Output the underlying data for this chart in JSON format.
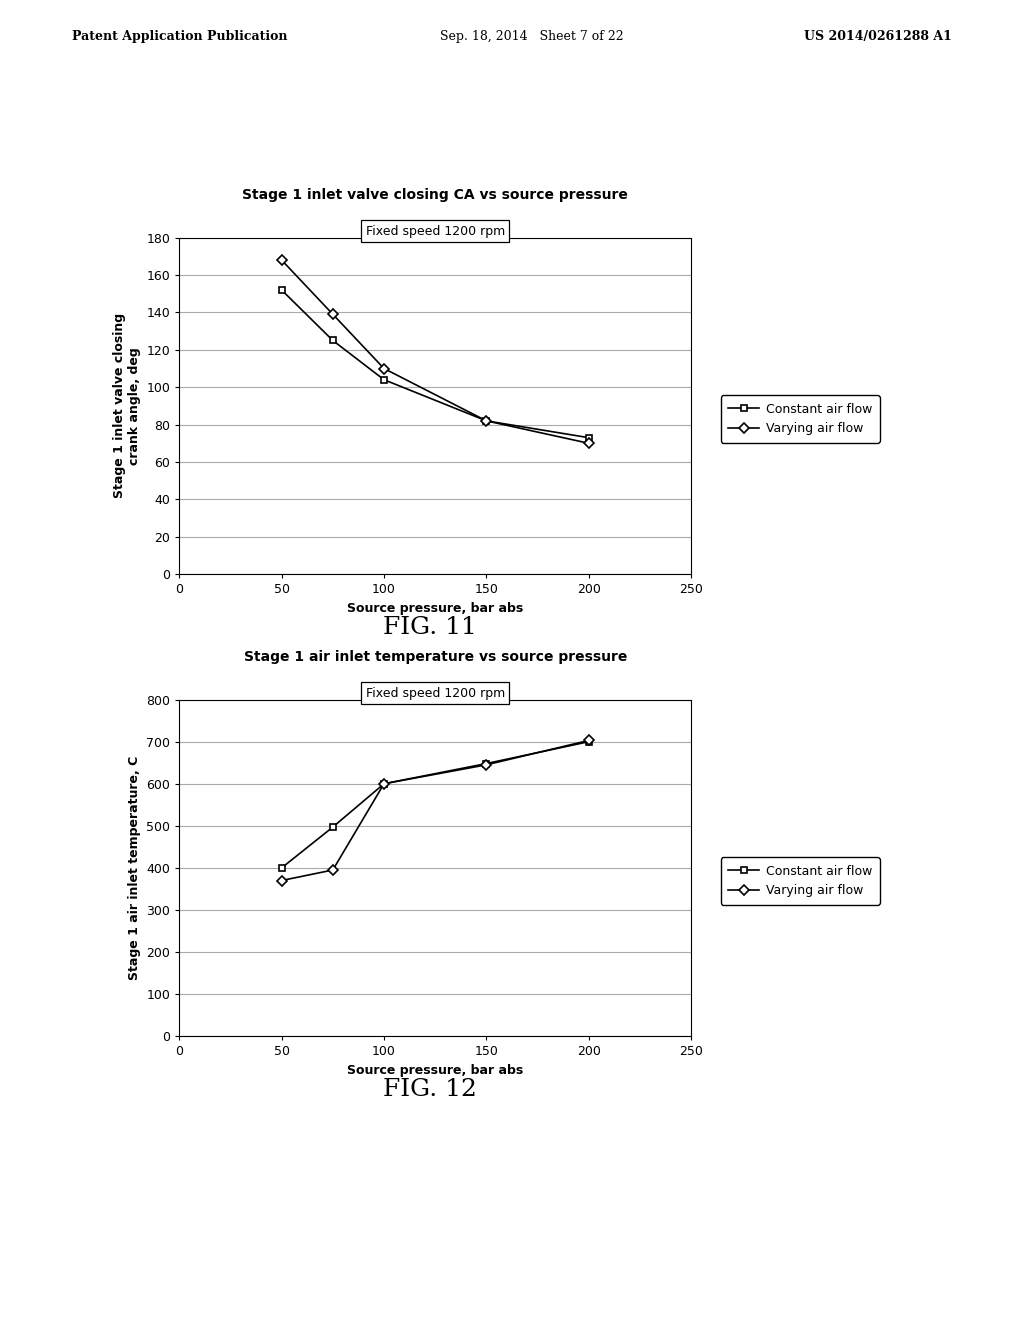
{
  "fig1": {
    "title": "Stage 1 inlet valve closing CA vs source pressure",
    "subtitle": "Fixed speed 1200 rpm",
    "xlabel": "Source pressure, bar abs",
    "ylabel": "Stage 1 inlet valve closing\ncrank angle, deg",
    "xlim": [
      0,
      250
    ],
    "ylim": [
      0,
      180
    ],
    "xticks": [
      0,
      50,
      100,
      150,
      200,
      250
    ],
    "yticks": [
      0,
      20,
      40,
      60,
      80,
      100,
      120,
      140,
      160,
      180
    ],
    "constant_x": [
      50,
      75,
      100,
      150,
      200
    ],
    "constant_y": [
      152,
      125,
      104,
      82,
      73
    ],
    "varying_x": [
      50,
      75,
      100,
      150,
      200
    ],
    "varying_y": [
      168,
      139,
      110,
      82,
      70
    ],
    "legend1": "Constant air flow",
    "legend2": "Varying air flow",
    "figname": "FIG. 11"
  },
  "fig2": {
    "title": "Stage 1 air inlet temperature vs source pressure",
    "subtitle": "Fixed speed 1200 rpm",
    "xlabel": "Source pressure, bar abs",
    "ylabel": "Stage 1 air inlet temperature, C",
    "xlim": [
      0,
      250
    ],
    "ylim": [
      0,
      800
    ],
    "xticks": [
      0,
      50,
      100,
      150,
      200,
      250
    ],
    "yticks": [
      0,
      100,
      200,
      300,
      400,
      500,
      600,
      700,
      800
    ],
    "constant_x": [
      50,
      75,
      100,
      150,
      200
    ],
    "constant_y": [
      400,
      497,
      600,
      648,
      700
    ],
    "varying_x": [
      50,
      75,
      100,
      150,
      200
    ],
    "varying_y": [
      370,
      395,
      600,
      645,
      703
    ],
    "legend1": "Constant air flow",
    "legend2": "Varying air flow",
    "figname": "FIG. 12"
  },
  "header_left": "Patent Application Publication",
  "header_center": "Sep. 18, 2014   Sheet 7 of 22",
  "header_right": "US 2014/0261288 A1",
  "bg_color": "#ffffff",
  "line_color": "#000000",
  "grid_color": "#aaaaaa",
  "title_fontsize": 10,
  "label_fontsize": 9,
  "tick_fontsize": 9,
  "legend_fontsize": 9,
  "subtitle_fontsize": 9,
  "fig_label_fontsize": 18,
  "header_fontsize": 9
}
